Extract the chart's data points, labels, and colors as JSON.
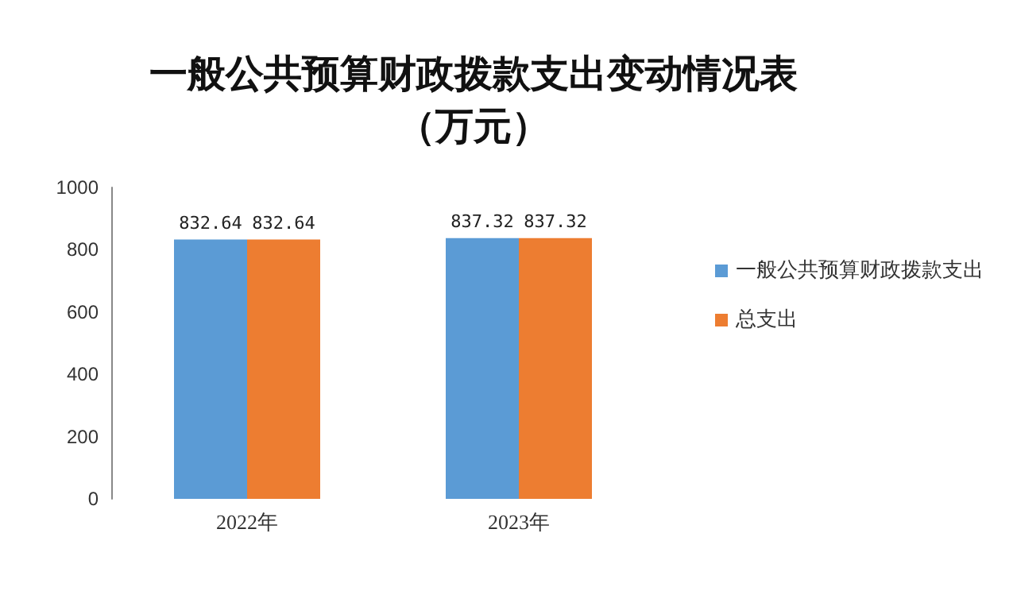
{
  "chart_data": {
    "type": "bar",
    "title": "一般公共预算财政拨款支出变动情况表",
    "subtitle": "（万元）",
    "categories": [
      "2022年",
      "2023年"
    ],
    "series": [
      {
        "name": "一般公共预算财政拨款支出",
        "color": "#5b9bd5",
        "values": [
          832.64,
          837.32
        ]
      },
      {
        "name": "总支出",
        "color": "#ed7d31",
        "values": [
          832.64,
          837.32
        ]
      }
    ],
    "ylim": [
      0,
      1000
    ],
    "yticks": [
      0,
      200,
      400,
      600,
      800,
      1000
    ],
    "grid": false,
    "legend": "right",
    "data_labels": true
  }
}
